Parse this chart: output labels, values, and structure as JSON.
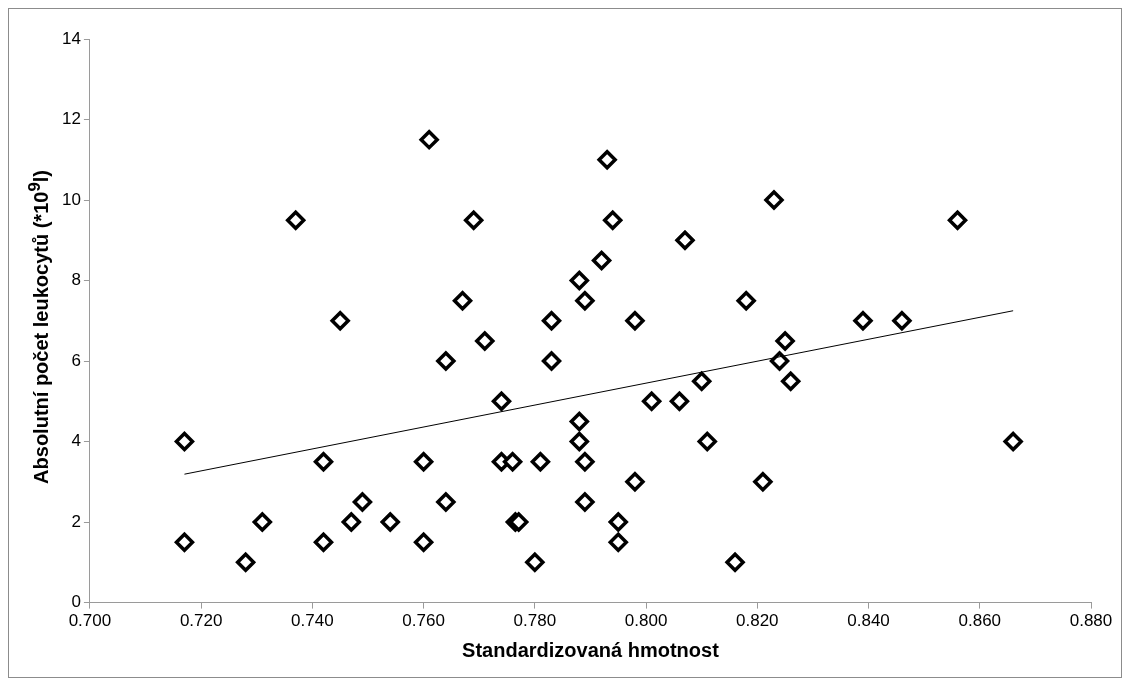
{
  "chart_data": {
    "type": "scatter",
    "xlabel": "Standardizovaná hmotnost",
    "ylabel": "Absolutní počet leukocytů (*10$^{9}$l)",
    "xlim": [
      0.7,
      0.88
    ],
    "xticks": [
      {
        "value": 0.7,
        "label": "0.700"
      },
      {
        "value": 0.72,
        "label": "0.720"
      },
      {
        "value": 0.74,
        "label": "0.740"
      },
      {
        "value": 0.76,
        "label": "0.760"
      },
      {
        "value": 0.78,
        "label": "0.780"
      },
      {
        "value": 0.8,
        "label": "0.800"
      },
      {
        "value": 0.82,
        "label": "0.820"
      },
      {
        "value": 0.84,
        "label": "0.840"
      },
      {
        "value": 0.86,
        "label": "0.860"
      },
      {
        "value": 0.88,
        "label": "0.880"
      }
    ],
    "ylim": [
      0,
      14
    ],
    "yticks": [
      0,
      2,
      4,
      6,
      8,
      10,
      12,
      14
    ],
    "grid": false,
    "legend": false,
    "series": [
      {
        "color": "#000000",
        "marker": "diamond",
        "x": [
          0.717,
          0.717,
          0.728,
          0.731,
          0.737,
          0.742,
          0.742,
          0.745,
          0.747,
          0.749,
          0.754,
          0.76,
          0.76,
          0.761,
          0.764,
          0.764,
          0.767,
          0.769,
          0.771,
          0.774,
          0.774,
          0.776,
          0.7765,
          0.7771,
          0.781,
          0.78,
          0.783,
          0.783,
          0.788,
          0.789,
          0.788,
          0.788,
          0.789,
          0.789,
          0.792,
          0.793,
          0.794,
          0.795,
          0.795,
          0.798,
          0.798,
          0.801,
          0.806,
          0.807,
          0.81,
          0.811,
          0.816,
          0.818,
          0.821,
          0.823,
          0.824,
          0.825,
          0.826,
          0.839,
          0.846,
          0.856,
          0.866
        ],
        "values": [
          4,
          1.5,
          1,
          2,
          9.5,
          3.5,
          1.5,
          7,
          2,
          2.5,
          2,
          3.5,
          1.5,
          11.5,
          6,
          2.5,
          7.5,
          9.5,
          6.5,
          5,
          3.5,
          3.5,
          2,
          2,
          3.5,
          1,
          7,
          6,
          8,
          7.5,
          4.5,
          4,
          3.5,
          2.5,
          8.5,
          11,
          9.5,
          2,
          1.5,
          7,
          3,
          5,
          5,
          9,
          5.5,
          4,
          1,
          7.5,
          3,
          10,
          6,
          6.5,
          5.5,
          7,
          7,
          9.5,
          4
        ]
      },
      {
        "type": "line",
        "color": "#000000",
        "marker": "none",
        "line_style": "solid",
        "x": [
          0.717,
          0.866
        ],
        "values": [
          3.19,
          7.25
        ]
      }
    ]
  }
}
